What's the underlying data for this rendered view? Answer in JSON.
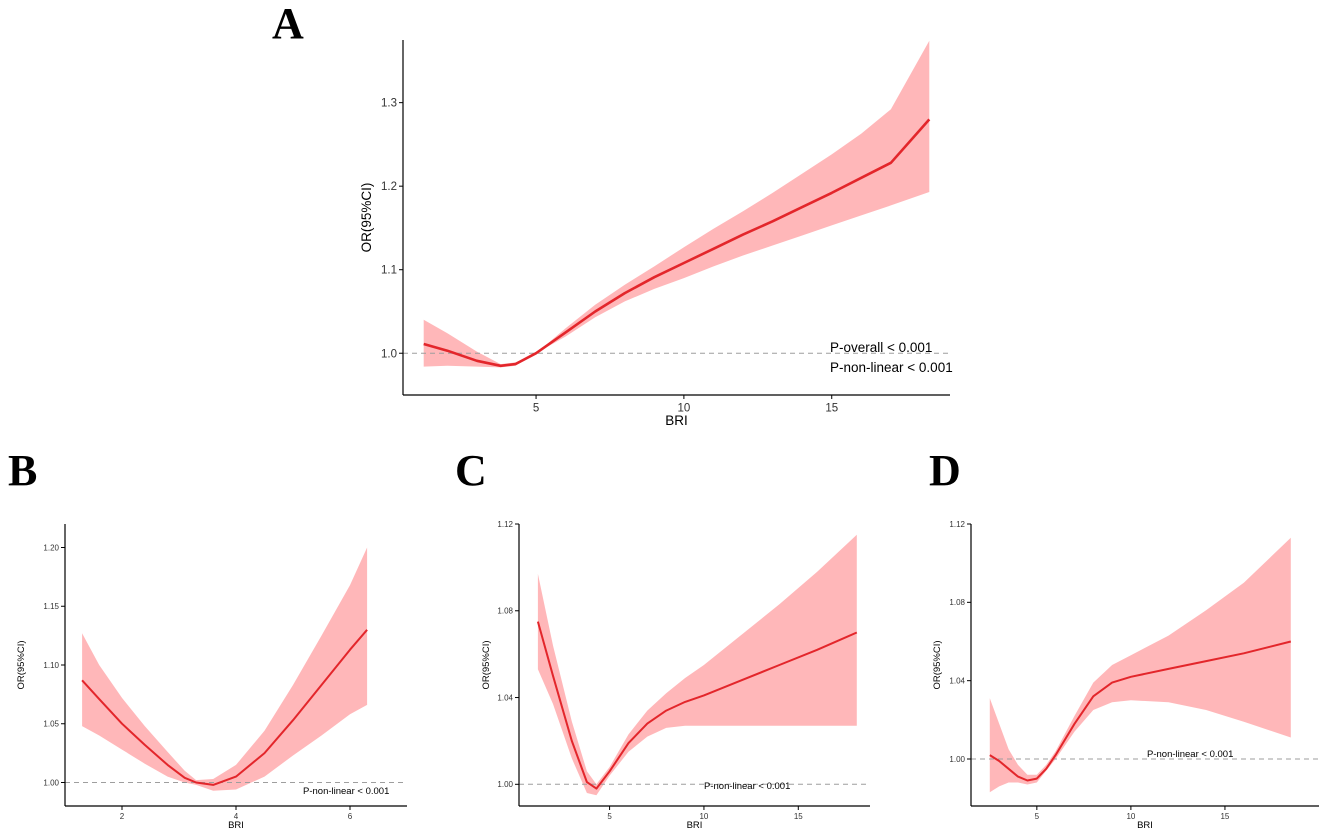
{
  "figure": {
    "colors": {
      "line": "#e3262b",
      "band": "#ffb3b5",
      "axis": "#000000",
      "reference": "#9e9e9e"
    }
  },
  "chart_data": [
    {
      "panel": "A",
      "type": "line",
      "xlabel": "BRI",
      "ylabel": "OR(95%CI)",
      "xlim": [
        0.5,
        19
      ],
      "ylim": [
        0.95,
        1.375
      ],
      "xticks": [
        5,
        10,
        15
      ],
      "yticks": [
        1.0,
        1.1,
        1.2,
        1.3
      ],
      "xtick_labels": [
        "5",
        "10",
        "15"
      ],
      "ytick_labels": [
        "1.0",
        "1.1",
        "1.2",
        "1.3"
      ],
      "reference_line": 1.0,
      "annotations": [
        "P-overall < 0.001",
        "P-non-linear < 0.001"
      ],
      "series": [
        {
          "name": "OR",
          "x": [
            1.2,
            2.0,
            3.0,
            3.8,
            4.3,
            5.0,
            6.0,
            7.0,
            8.0,
            9.0,
            10.0,
            11.0,
            12.0,
            13.0,
            14.0,
            15.0,
            16.0,
            17.0,
            18.3
          ],
          "y": [
            1.011,
            1.003,
            0.991,
            0.985,
            0.987,
            1.0,
            1.025,
            1.05,
            1.072,
            1.091,
            1.108,
            1.125,
            1.142,
            1.158,
            1.175,
            1.192,
            1.21,
            1.228,
            1.28
          ],
          "lower": [
            0.984,
            0.985,
            0.984,
            0.983,
            0.985,
            1.0,
            1.02,
            1.043,
            1.062,
            1.077,
            1.09,
            1.104,
            1.117,
            1.129,
            1.141,
            1.153,
            1.165,
            1.177,
            1.193
          ],
          "upper": [
            1.04,
            1.024,
            1.002,
            0.987,
            0.989,
            1.0,
            1.03,
            1.058,
            1.082,
            1.104,
            1.127,
            1.149,
            1.17,
            1.192,
            1.215,
            1.238,
            1.263,
            1.292,
            1.374
          ]
        }
      ]
    },
    {
      "panel": "B",
      "type": "line",
      "xlabel": "BRI",
      "ylabel": "OR(95%CI)",
      "xlim": [
        1.0,
        7.0
      ],
      "ylim": [
        0.98,
        1.22
      ],
      "xticks": [
        2,
        4,
        6
      ],
      "yticks": [
        1.0,
        1.05,
        1.1,
        1.15,
        1.2
      ],
      "xtick_labels": [
        "2",
        "4",
        "6"
      ],
      "ytick_labels": [
        "1.00",
        "1.05",
        "1.10",
        "1.15",
        "1.20"
      ],
      "reference_line": 1.0,
      "annotations": [
        "P-non-linear < 0.001"
      ],
      "series": [
        {
          "name": "OR",
          "x": [
            1.3,
            1.6,
            2.0,
            2.4,
            2.8,
            3.1,
            3.3,
            3.6,
            4.0,
            4.5,
            5.0,
            5.5,
            6.0,
            6.3
          ],
          "y": [
            1.087,
            1.071,
            1.05,
            1.032,
            1.015,
            1.004,
            1.0,
            0.998,
            1.005,
            1.025,
            1.053,
            1.083,
            1.113,
            1.13
          ],
          "lower": [
            1.048,
            1.04,
            1.028,
            1.016,
            1.005,
            1.0,
            0.998,
            0.993,
            0.994,
            1.005,
            1.023,
            1.04,
            1.058,
            1.066
          ],
          "upper": [
            1.127,
            1.1,
            1.072,
            1.048,
            1.026,
            1.01,
            1.002,
            1.003,
            1.015,
            1.044,
            1.083,
            1.125,
            1.168,
            1.2
          ]
        }
      ]
    },
    {
      "panel": "C",
      "type": "line",
      "xlabel": "BRI",
      "ylabel": "OR(95%CI)",
      "xlim": [
        0.2,
        18.8
      ],
      "ylim": [
        0.99,
        1.12
      ],
      "xticks": [
        5,
        10,
        15
      ],
      "yticks": [
        1.0,
        1.04,
        1.08,
        1.12
      ],
      "xtick_labels": [
        "5",
        "10",
        "15"
      ],
      "ytick_labels": [
        "1.00",
        "1.04",
        "1.08",
        "1.12"
      ],
      "reference_line": 1.0,
      "annotations": [
        "P-non-linear < 0.001"
      ],
      "series": [
        {
          "name": "OR",
          "x": [
            1.2,
            2.0,
            3.0,
            3.8,
            4.3,
            5.0,
            6.0,
            7.0,
            8.0,
            9.0,
            10.0,
            12.0,
            14.0,
            16.0,
            18.1
          ],
          "y": [
            1.075,
            1.05,
            1.02,
            1.001,
            0.998,
            1.006,
            1.019,
            1.028,
            1.034,
            1.038,
            1.041,
            1.048,
            1.055,
            1.062,
            1.07
          ],
          "lower": [
            1.053,
            1.037,
            1.012,
            0.996,
            0.995,
            1.004,
            1.015,
            1.022,
            1.026,
            1.027,
            1.027,
            1.027,
            1.027,
            1.027,
            1.027
          ],
          "upper": [
            1.097,
            1.064,
            1.029,
            1.006,
            1.0,
            1.008,
            1.023,
            1.034,
            1.042,
            1.049,
            1.055,
            1.069,
            1.083,
            1.098,
            1.115
          ]
        }
      ]
    },
    {
      "panel": "D",
      "type": "line",
      "xlabel": "BRI",
      "ylabel": "OR(95%CI)",
      "xlim": [
        1.5,
        20.0
      ],
      "ylim": [
        0.976,
        1.12
      ],
      "xticks": [
        5,
        10,
        15
      ],
      "yticks": [
        1.0,
        1.04,
        1.08,
        1.12
      ],
      "xtick_labels": [
        "5",
        "10",
        "15"
      ],
      "ytick_labels": [
        "1.00",
        "1.04",
        "1.08",
        "1.12"
      ],
      "reference_line": 1.0,
      "annotations": [
        "P-non-linear < 0.001"
      ],
      "series": [
        {
          "name": "OR",
          "x": [
            2.5,
            3.0,
            3.5,
            4.0,
            4.5,
            5.0,
            5.5,
            6.0,
            7.0,
            8.0,
            9.0,
            10.0,
            12.0,
            14.0,
            16.0,
            18.5
          ],
          "y": [
            1.002,
            0.999,
            0.995,
            0.991,
            0.989,
            0.99,
            0.995,
            1.002,
            1.018,
            1.032,
            1.039,
            1.042,
            1.046,
            1.05,
            1.054,
            1.06
          ],
          "lower": [
            0.983,
            0.986,
            0.988,
            0.988,
            0.987,
            0.988,
            0.994,
            1.0,
            1.014,
            1.025,
            1.029,
            1.03,
            1.029,
            1.025,
            1.019,
            1.011
          ],
          "upper": [
            1.031,
            1.018,
            1.005,
            0.997,
            0.992,
            0.992,
            0.997,
            1.004,
            1.022,
            1.039,
            1.048,
            1.053,
            1.063,
            1.076,
            1.09,
            1.113
          ]
        }
      ]
    }
  ]
}
